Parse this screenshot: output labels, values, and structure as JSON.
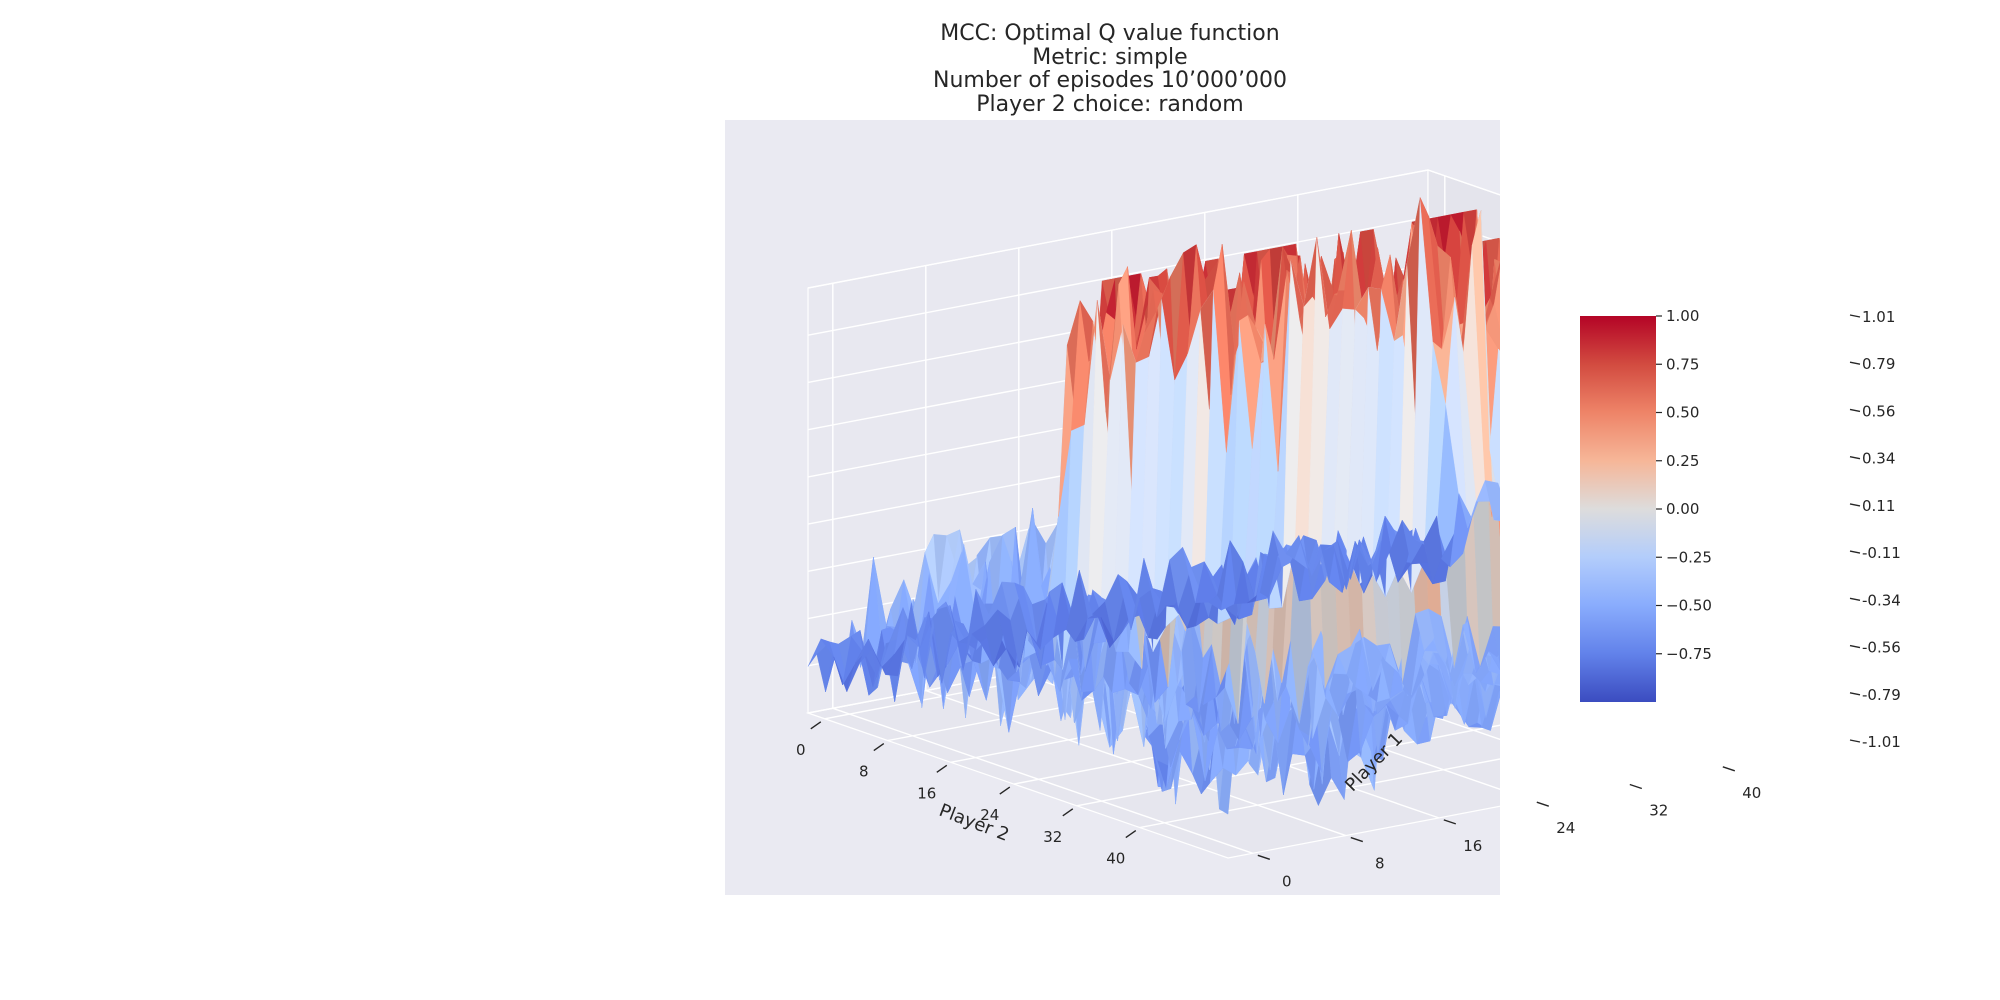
{
  "chart_data": {
    "type": "surface3d",
    "title_lines": [
      "MCC: Optimal Q value function",
      "Metric: simple",
      "Number of episodes 10’000’000",
      "Player 2 choice: random"
    ],
    "xlabel": "Player 2",
    "ylabel": "Player 1",
    "x_ticks": [
      "0",
      "8",
      "16",
      "24",
      "32",
      "40"
    ],
    "y_ticks": [
      "0",
      "8",
      "16",
      "24",
      "32",
      "40"
    ],
    "z_ticks": [
      "-1.01",
      "-0.79",
      "-0.56",
      "-0.34",
      "-0.11",
      "0.11",
      "0.34",
      "0.56",
      "0.79",
      "1.01"
    ],
    "zlim": [
      -1.01,
      1.01
    ],
    "colorbar": {
      "ticks": [
        "1.00",
        "0.75",
        "0.50",
        "0.25",
        "0.00",
        "−0.25",
        "−0.50",
        "−0.75"
      ],
      "range": [
        -1.0,
        1.0
      ],
      "colormap": "coolwarm",
      "low_color": "#3b4cc0",
      "mid_color": "#dddddd",
      "high_color": "#b40426"
    },
    "grid": true,
    "panel_color": "#eaeaf2"
  }
}
